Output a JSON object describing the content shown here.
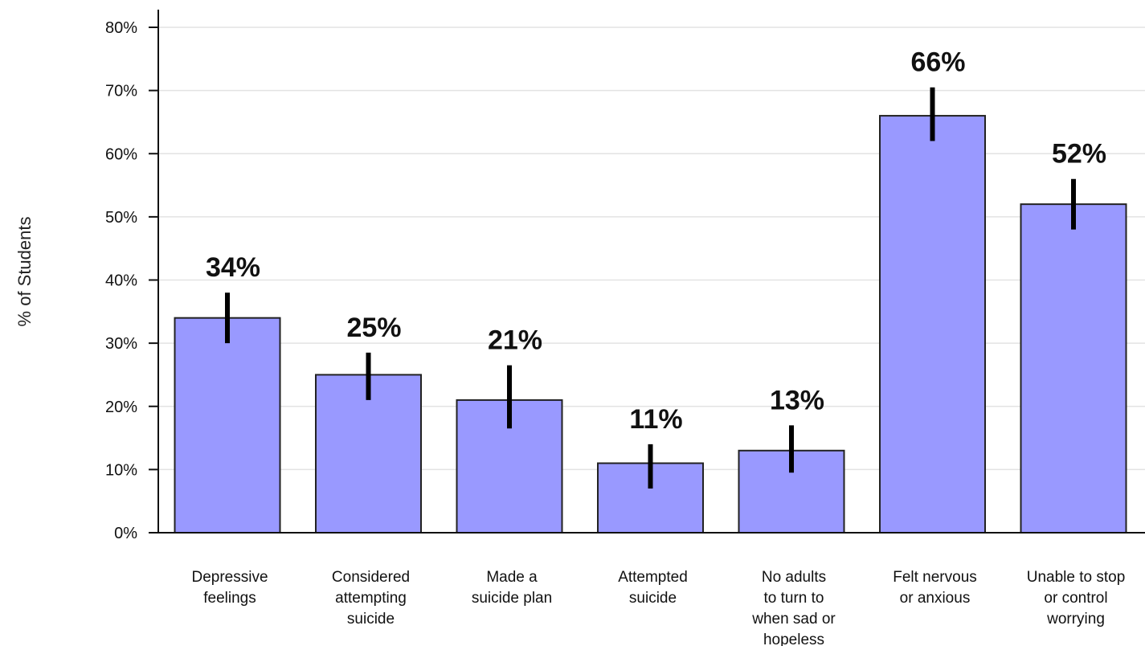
{
  "chart_data": {
    "type": "bar",
    "title": "",
    "xlabel": "",
    "ylabel": "% of Students",
    "ylim": [
      0,
      80
    ],
    "yticks": [
      0,
      10,
      20,
      30,
      40,
      50,
      60,
      70,
      80
    ],
    "ytick_labels": [
      "0%",
      "10%",
      "20%",
      "30%",
      "40%",
      "50%",
      "60%",
      "70%",
      "80%"
    ],
    "grid": true,
    "legend": "none",
    "bar_color": "#9999ff",
    "categories": [
      [
        "Depressive",
        "feelings"
      ],
      [
        "Considered",
        "attempting",
        "suicide"
      ],
      [
        "Made a",
        "suicide plan"
      ],
      [
        "Attempted",
        "suicide"
      ],
      [
        "No adults",
        "to turn to",
        "when sad or",
        "hopeless"
      ],
      [
        "Felt nervous",
        "or anxious"
      ],
      [
        "Unable to stop",
        "or control",
        "worrying"
      ]
    ],
    "values": [
      34,
      25,
      21,
      11,
      13,
      66,
      52
    ],
    "value_labels": [
      "34%",
      "25%",
      "21%",
      "11%",
      "13%",
      "66%",
      "52%"
    ],
    "error_low": [
      30,
      21,
      16.5,
      7,
      9.5,
      62,
      48
    ],
    "error_high": [
      38,
      28.5,
      26.5,
      14,
      17,
      70.5,
      56
    ]
  }
}
